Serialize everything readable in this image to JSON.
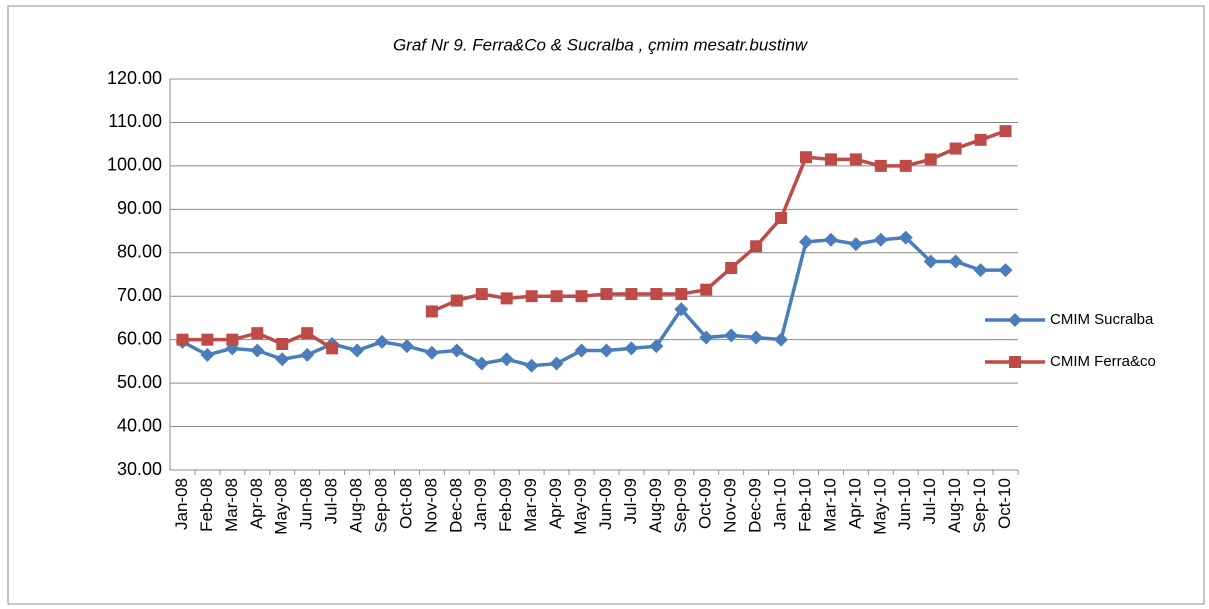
{
  "chart_data": {
    "type": "line",
    "title": "Graf Nr 9. Ferra&Co & Sucralba , çmim mesatr.bustinw",
    "categories": [
      "Jan-08",
      "Feb-08",
      "Mar-08",
      "Apr-08",
      "May-08",
      "Jun-08",
      "Jul-08",
      "Aug-08",
      "Sep-08",
      "Oct-08",
      "Nov-08",
      "Dec-08",
      "Jan-09",
      "Feb-09",
      "Mar-09",
      "Apr-09",
      "May-09",
      "Jun-09",
      "Jul-09",
      "Aug-09",
      "Sep-09",
      "Oct-09",
      "Nov-09",
      "Dec-09",
      "Jan-10",
      "Feb-10",
      "Mar-10",
      "Apr-10",
      "May-10",
      "Jun-10",
      "Jul-10",
      "Aug-10",
      "Sep-10",
      "Oct-10"
    ],
    "series": [
      {
        "name": "CMIM Sucralba",
        "color": "#4a7ebb",
        "marker": "diamond",
        "values": [
          59.5,
          56.5,
          58,
          57.5,
          55.5,
          56.5,
          59,
          57.5,
          59.5,
          58.5,
          57,
          57.5,
          54.5,
          55.5,
          54,
          54.5,
          57.5,
          57.5,
          58,
          58.5,
          67,
          60.5,
          61,
          60.5,
          60,
          82.5,
          83,
          82,
          83,
          83.5,
          78,
          78,
          76,
          76
        ]
      },
      {
        "name": "CMIM Ferra&co",
        "color": "#be4b48",
        "marker": "square",
        "values": [
          60,
          60,
          60,
          61.5,
          59,
          61.5,
          58,
          null,
          null,
          null,
          66.5,
          69,
          70.5,
          69.5,
          70,
          70,
          70,
          70.5,
          70.5,
          70.5,
          70.5,
          71.5,
          76.5,
          81.5,
          88,
          102,
          101.5,
          101.5,
          100,
          100,
          101.5,
          104,
          106,
          108
        ]
      }
    ],
    "ylim": [
      30,
      120
    ],
    "yticks": [
      {
        "value": 30,
        "label": "30.00"
      },
      {
        "value": 40,
        "label": "40.00"
      },
      {
        "value": 50,
        "label": "50.00"
      },
      {
        "value": 60,
        "label": "60.00"
      },
      {
        "value": 70,
        "label": "70.00"
      },
      {
        "value": 80,
        "label": "80.00"
      },
      {
        "value": 90,
        "label": "90.00"
      },
      {
        "value": 100,
        "label": "100.00"
      },
      {
        "value": 110,
        "label": "110.00"
      },
      {
        "value": 120,
        "label": "120.00"
      }
    ],
    "grid": true,
    "legend": "right"
  }
}
